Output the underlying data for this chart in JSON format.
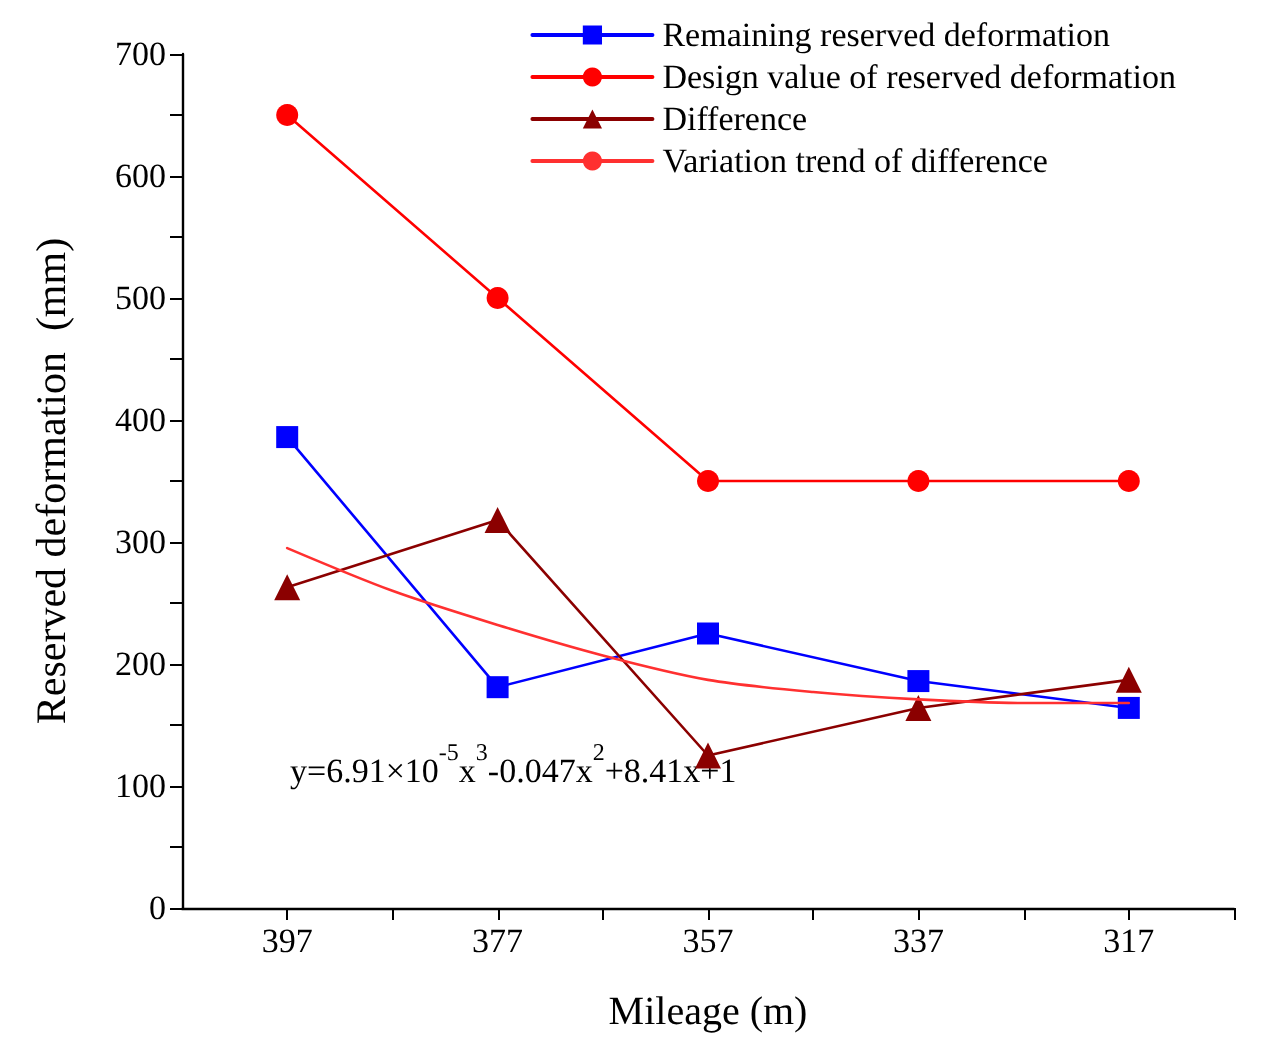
{
  "chart_data": {
    "type": "line",
    "xlabel": "Mileage (m)",
    "ylabel": "Reserved deformation  (mm)",
    "xlim": [
      407,
      307
    ],
    "xticks": [
      397,
      {
        "value": 387,
        "label": null
      },
      377,
      {
        "value": 367,
        "label": null
      },
      357,
      {
        "value": 347,
        "label": null
      },
      337,
      {
        "value": 327,
        "label": null
      },
      317,
      {
        "value": 307,
        "label": null
      }
    ],
    "ylim": [
      0,
      700
    ],
    "yticks": [
      0,
      {
        "value": 50,
        "label": null
      },
      100,
      {
        "value": 150,
        "label": null
      },
      200,
      {
        "value": 250,
        "label": null
      },
      300,
      {
        "value": 350,
        "label": null
      },
      400,
      {
        "value": 450,
        "label": null
      },
      500,
      {
        "value": 550,
        "label": null
      },
      600,
      {
        "value": 650,
        "label": null
      },
      700
    ],
    "grid": false,
    "legend": "top right",
    "annotations": [
      "y=6.91×10$^{-5}$x$^{3}$-0.047x$^{2}$+8.41x+1"
    ],
    "series": [
      {
        "name": "Remaining reserved deformation",
        "color": "#0000ff",
        "marker": "square",
        "x": [
          397,
          377,
          357,
          337,
          317
        ],
        "values": [
          386,
          181,
          225,
          186,
          164
        ]
      },
      {
        "name": "Design value of reserved deformation",
        "color": "#ff0000",
        "marker": "circle",
        "x": [
          397,
          377,
          357,
          337,
          317
        ],
        "values": [
          650,
          500,
          350,
          350,
          350
        ]
      },
      {
        "name": "Difference",
        "color": "#8b0000",
        "marker": "triangle",
        "x": [
          397,
          377,
          357,
          337,
          317
        ],
        "values": [
          263,
          318,
          125,
          164,
          187
        ]
      },
      {
        "name": "Variation trend of difference",
        "color": "#ff3030",
        "marker": "none",
        "x": [
          397,
          387,
          377,
          367,
          357,
          347,
          337,
          327,
          317
        ],
        "values": [
          295,
          260,
          232,
          207,
          187,
          177,
          171,
          168,
          168
        ]
      }
    ]
  }
}
